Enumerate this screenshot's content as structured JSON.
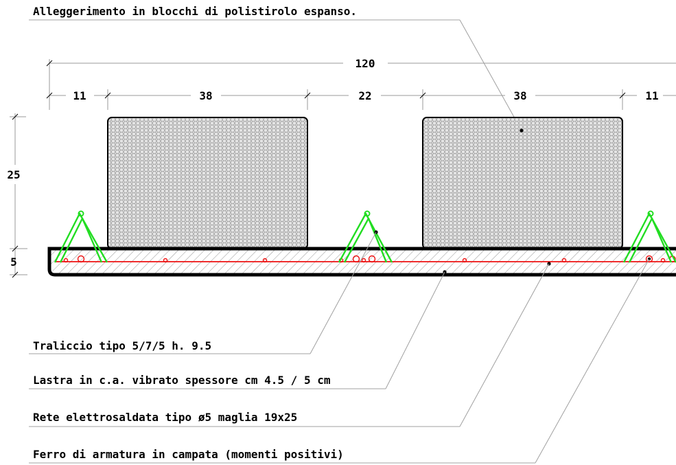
{
  "labels": {
    "top": "Alleggerimento in blocchi di polistirolo espanso.",
    "truss": "Traliccio tipo 5/7/5 h. 9.5",
    "slab": "Lastra in c.a. vibrato spessore cm 4.5 / 5 cm",
    "mesh": "Rete elettrosaldata tipo ø5 maglia 19x25",
    "rebar": "Ferro di armatura in campata (momenti positivi)"
  },
  "dimensions": {
    "total": "120",
    "segments": [
      "11",
      "38",
      "22",
      "38",
      "11"
    ],
    "height_block": "25",
    "height_slab": "5"
  },
  "colors": {
    "truss": "#22dd22",
    "rebar": "#ee1111",
    "outline": "#000000",
    "leader": "#a0a0a0"
  }
}
